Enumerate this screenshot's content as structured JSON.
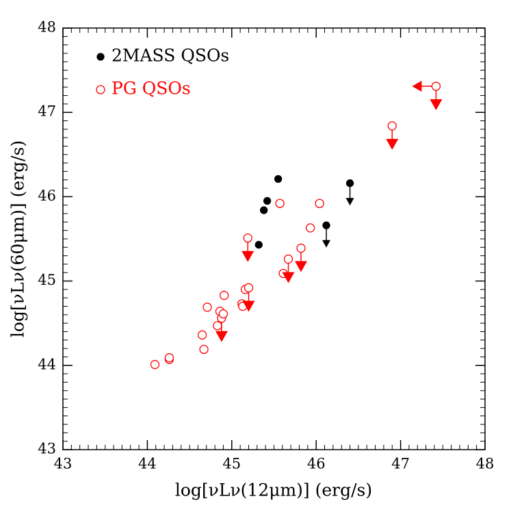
{
  "chart_data": {
    "type": "scatter",
    "xlabel": "log[νLν(12μm)] (erg/s)",
    "ylabel": "log[νLν(60μm)] (erg/s)",
    "xlim": [
      43,
      48
    ],
    "ylim": [
      43,
      48
    ],
    "xticks": [
      43,
      44,
      45,
      46,
      47,
      48
    ],
    "yticks": [
      43,
      44,
      45,
      46,
      47,
      48
    ],
    "legend": "upper left",
    "series": [
      {
        "name": "2MASS QSOs",
        "color": "#000000",
        "marker": "filled",
        "x": [
          45.32,
          45.38,
          45.42,
          45.55,
          46.12,
          46.4
        ],
        "values": [
          45.43,
          45.84,
          45.95,
          46.21,
          45.66,
          46.16
        ],
        "upper_limits": [
          false,
          false,
          false,
          false,
          true,
          true
        ],
        "x_upper_limits": [
          false,
          false,
          false,
          false,
          false,
          false
        ]
      },
      {
        "name": "PG QSOs",
        "color": "#ff0000",
        "marker": "open",
        "x": [
          44.09,
          44.26,
          44.26,
          44.65,
          44.67,
          44.71,
          44.83,
          44.86,
          44.88,
          44.9,
          44.91,
          45.12,
          45.13,
          45.16,
          45.2,
          45.19,
          45.57,
          45.61,
          45.67,
          45.82,
          45.93,
          46.04,
          46.9,
          47.42
        ],
        "values": [
          44.01,
          44.07,
          44.09,
          44.36,
          44.19,
          44.69,
          44.47,
          44.64,
          44.56,
          44.61,
          44.83,
          44.73,
          44.7,
          44.9,
          44.92,
          45.51,
          45.92,
          45.09,
          45.26,
          45.39,
          45.63,
          45.92,
          46.84,
          47.31
        ],
        "upper_limits": [
          false,
          false,
          false,
          false,
          false,
          false,
          false,
          false,
          true,
          false,
          false,
          false,
          false,
          false,
          true,
          true,
          false,
          false,
          true,
          true,
          false,
          false,
          true,
          true
        ],
        "x_upper_limits": [
          false,
          false,
          false,
          false,
          false,
          false,
          false,
          false,
          false,
          false,
          false,
          false,
          false,
          false,
          false,
          false,
          false,
          false,
          false,
          false,
          false,
          false,
          false,
          true
        ]
      }
    ]
  }
}
